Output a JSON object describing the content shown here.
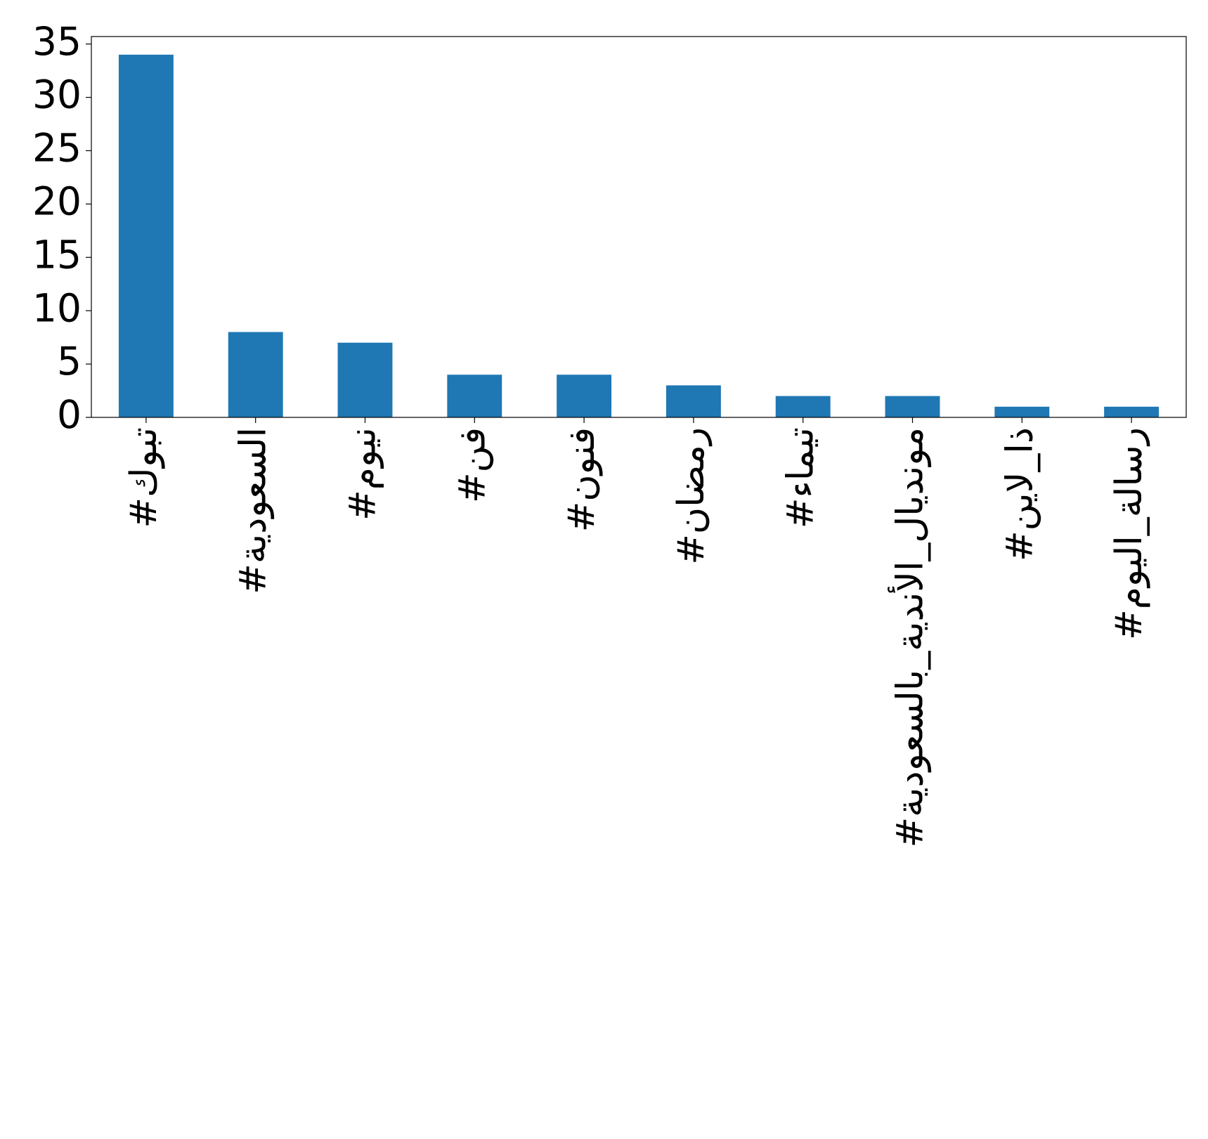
{
  "chart_data": {
    "type": "bar",
    "categories": [
      "#تبوك",
      "#السعودية",
      "#نيوم",
      "#فن",
      "#فنون",
      "#رمضان",
      "#تيماء",
      "#مونديال_الأندية_بالسعودية",
      "#ذا_لاين",
      "#رسالة_اليوم"
    ],
    "values": [
      34,
      8,
      7,
      4,
      4,
      3,
      2,
      2,
      1,
      1
    ],
    "color": "#1f77b4",
    "ylim": [
      0,
      35.7
    ],
    "yticks": [
      0,
      5,
      10,
      15,
      20,
      25,
      30,
      35
    ],
    "grid": false
  }
}
